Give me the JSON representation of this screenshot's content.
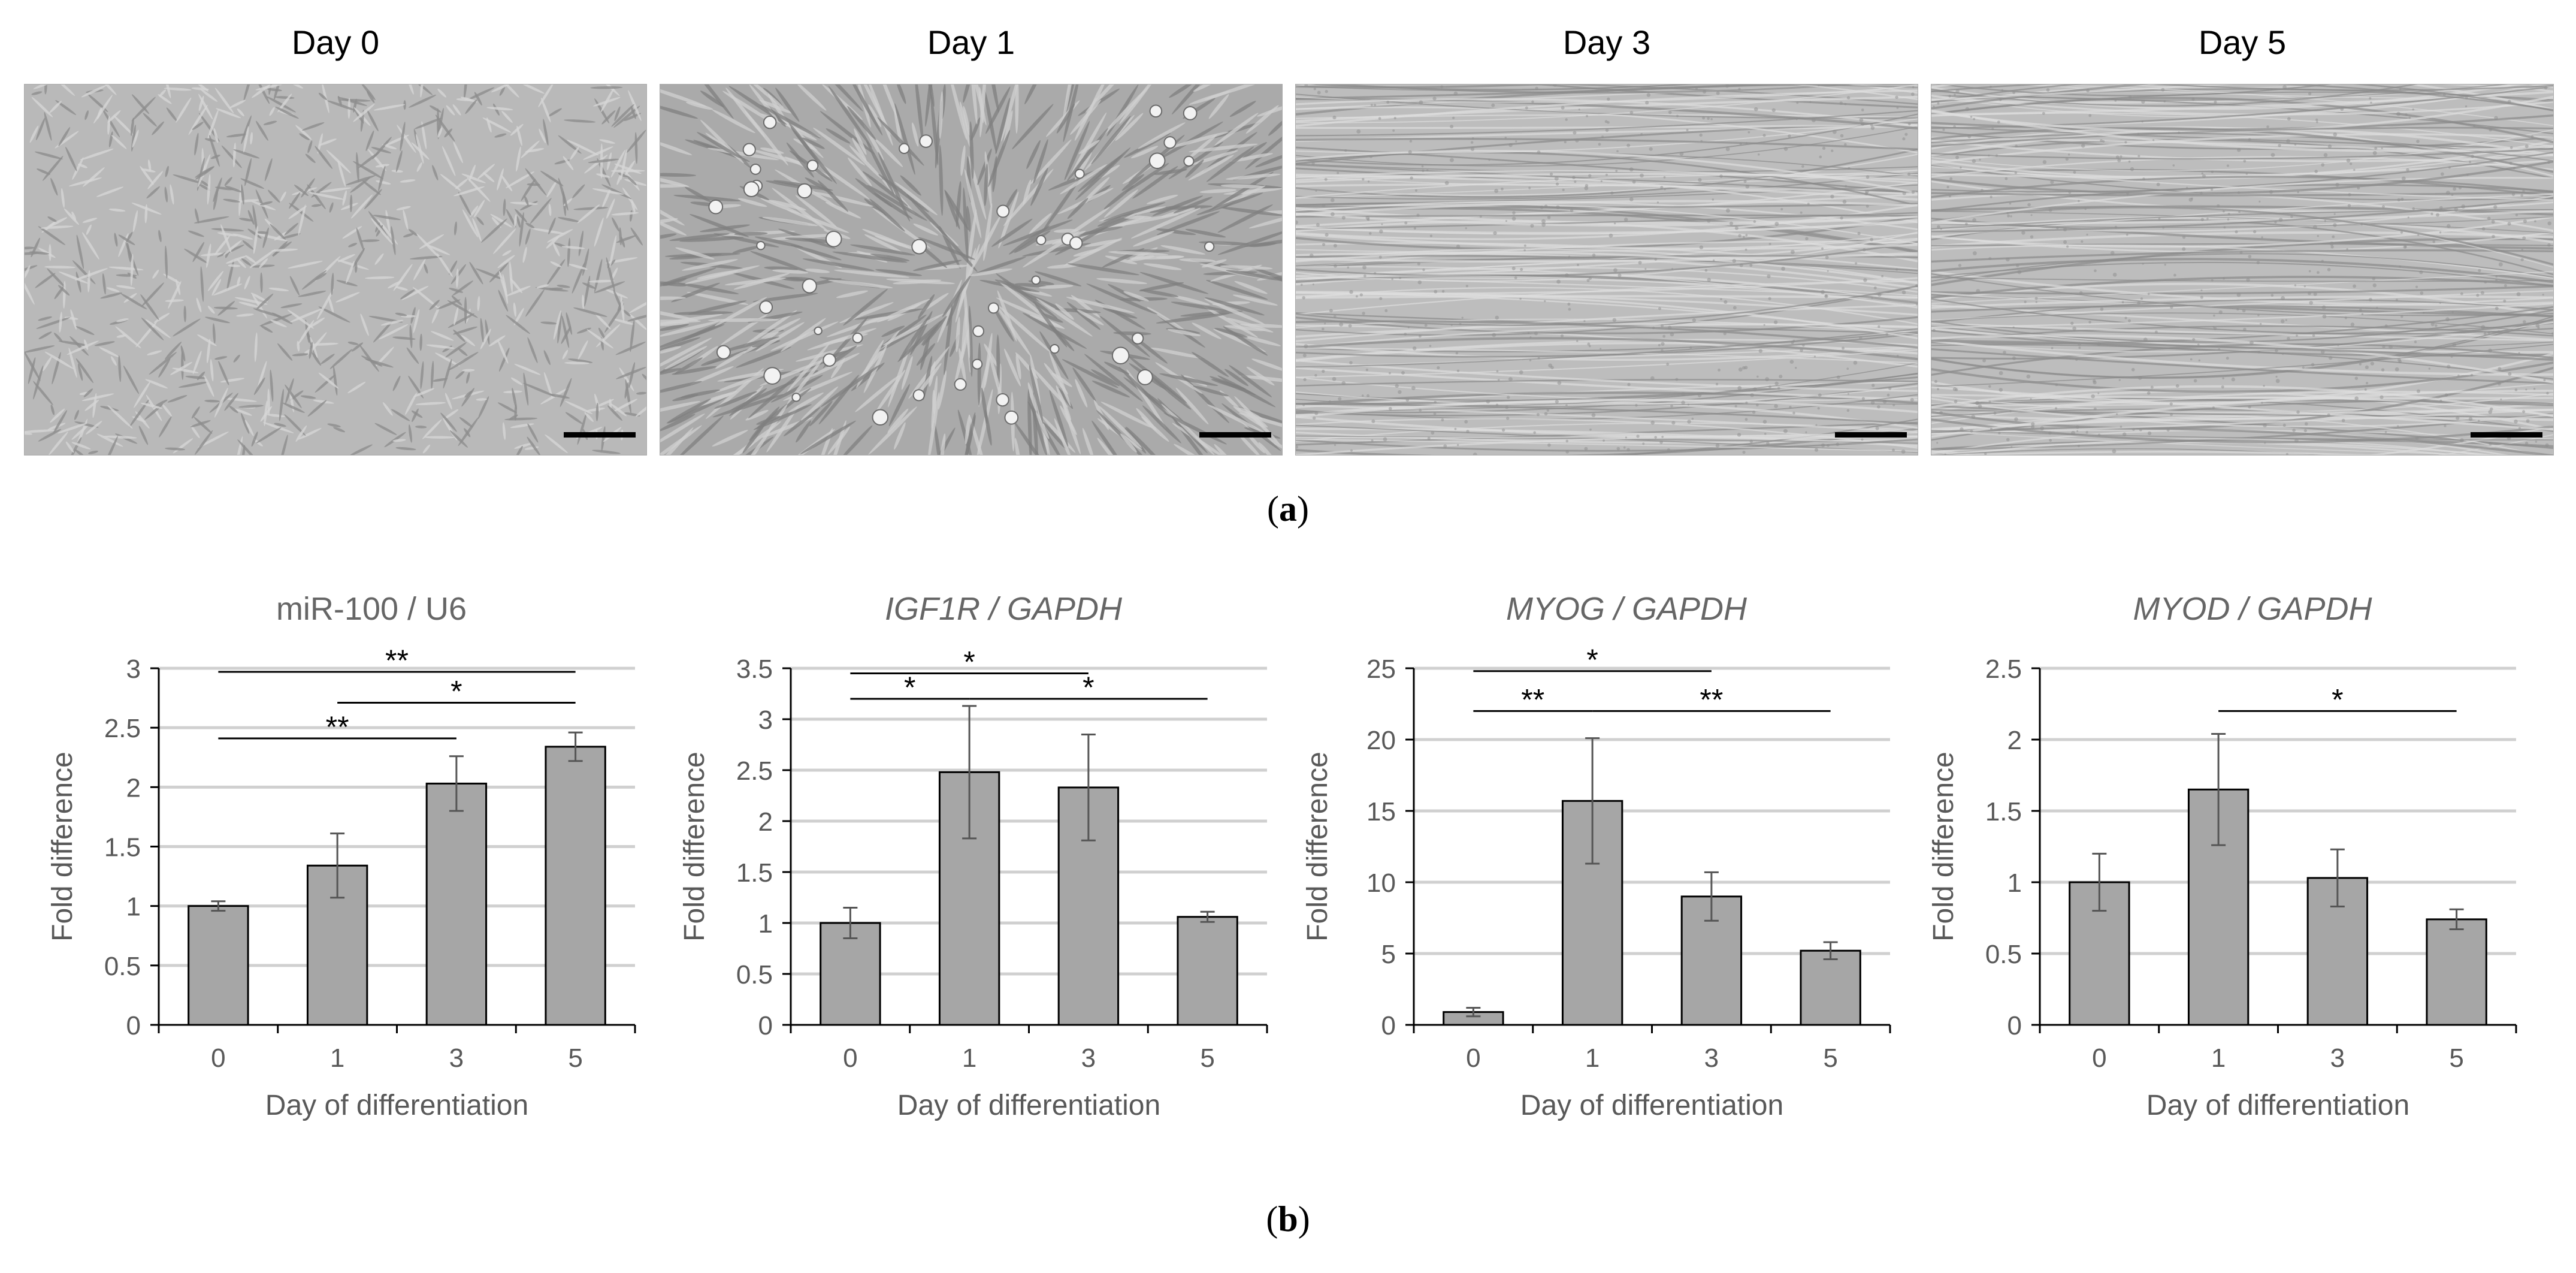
{
  "micrographs": {
    "titles": [
      "Day 0",
      "Day 1",
      "Day 3",
      "Day 5"
    ]
  },
  "captions": {
    "a": "a",
    "b": "b"
  },
  "chart_data": [
    {
      "type": "bar",
      "title": "miR-100 / U6",
      "title_italic": false,
      "xlabel": "Day of differentiation",
      "ylabel": "Fold difference",
      "categories": [
        "0",
        "1",
        "3",
        "5"
      ],
      "values": [
        1.0,
        1.34,
        2.03,
        2.34
      ],
      "errors": [
        0.04,
        0.27,
        0.23,
        0.12
      ],
      "ylim": [
        0,
        3
      ],
      "yticks": [
        "0",
        "0.5",
        "1",
        "1.5",
        "2",
        "2.5",
        "3"
      ],
      "ytick_values": [
        0,
        0.5,
        1,
        1.5,
        2,
        2.5,
        3
      ],
      "grid": true,
      "bar_color": "#a6a6a6",
      "significance": [
        {
          "from": 0,
          "to": 3,
          "y": 2.97,
          "label": "**"
        },
        {
          "from": 1,
          "to": 3,
          "y": 2.71,
          "label": "*"
        },
        {
          "from": 0,
          "to": 2,
          "y": 2.41,
          "label": "**"
        }
      ]
    },
    {
      "type": "bar",
      "title": "IGF1R / GAPDH",
      "title_italic": true,
      "xlabel": "Day of differentiation",
      "ylabel": "Fold difference",
      "categories": [
        "0",
        "1",
        "3",
        "5"
      ],
      "values": [
        1.0,
        2.48,
        2.33,
        1.06
      ],
      "errors": [
        0.15,
        0.65,
        0.52,
        0.05
      ],
      "ylim": [
        0,
        3.5
      ],
      "yticks": [
        "0",
        "0.5",
        "1",
        "1.5",
        "2",
        "2.5",
        "3",
        "3.5"
      ],
      "ytick_values": [
        0,
        0.5,
        1,
        1.5,
        2,
        2.5,
        3,
        3.5
      ],
      "grid": true,
      "bar_color": "#a6a6a6",
      "significance": [
        {
          "from": 0,
          "to": 2,
          "y": 3.45,
          "label": "*"
        },
        {
          "from": 0,
          "to": 1,
          "y": 3.2,
          "label": "*"
        },
        {
          "from": 1,
          "to": 3,
          "y": 3.2,
          "label": "*"
        }
      ]
    },
    {
      "type": "bar",
      "title": "MYOG / GAPDH",
      "title_italic": true,
      "xlabel": "Day of differentiation",
      "ylabel": "Fold difference",
      "categories": [
        "0",
        "1",
        "3",
        "5"
      ],
      "values": [
        0.9,
        15.7,
        9.0,
        5.2
      ],
      "errors": [
        0.3,
        4.4,
        1.7,
        0.6
      ],
      "ylim": [
        0,
        25
      ],
      "yticks": [
        "0",
        "5",
        "10",
        "15",
        "20",
        "25"
      ],
      "ytick_values": [
        0,
        5,
        10,
        15,
        20,
        25
      ],
      "grid": true,
      "bar_color": "#a6a6a6",
      "significance": [
        {
          "from": 0,
          "to": 2,
          "y": 24.8,
          "label": "*"
        },
        {
          "from": 0,
          "to": 1,
          "y": 22.0,
          "label": "**"
        },
        {
          "from": 1,
          "to": 3,
          "y": 22.0,
          "label": "**"
        }
      ]
    },
    {
      "type": "bar",
      "title": "MYOD / GAPDH",
      "title_italic": true,
      "xlabel": "Day of differentiation",
      "ylabel": "Fold difference",
      "categories": [
        "0",
        "1",
        "3",
        "5"
      ],
      "values": [
        1.0,
        1.65,
        1.03,
        0.74
      ],
      "errors": [
        0.2,
        0.39,
        0.2,
        0.07
      ],
      "ylim": [
        0,
        2.5
      ],
      "yticks": [
        "0",
        "0.5",
        "1",
        "1.5",
        "2",
        "2.5"
      ],
      "ytick_values": [
        0,
        0.5,
        1,
        1.5,
        2,
        2.5
      ],
      "grid": true,
      "bar_color": "#a6a6a6",
      "significance": [
        {
          "from": 1,
          "to": 3,
          "y": 2.2,
          "label": "*"
        }
      ]
    }
  ]
}
